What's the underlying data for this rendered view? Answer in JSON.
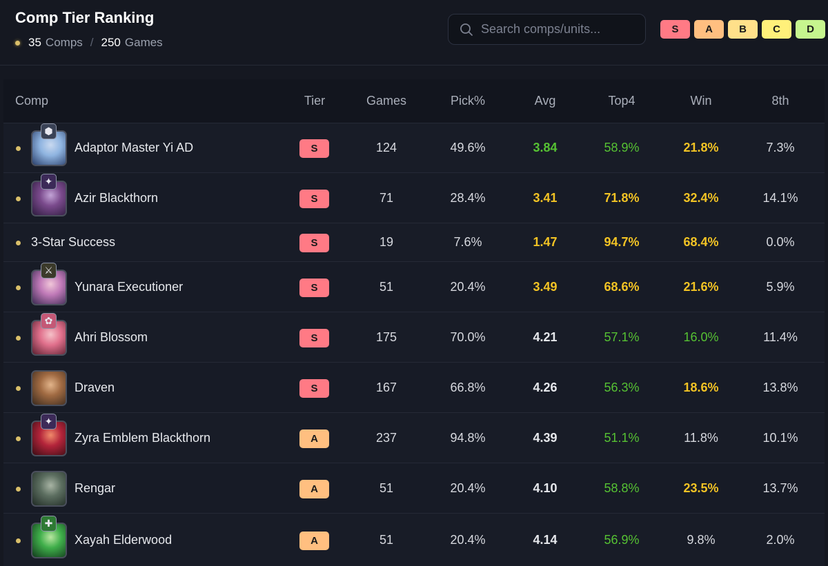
{
  "header": {
    "title": "Comp Tier Ranking",
    "comps_count": "35",
    "comps_label": "Comps",
    "separator": "/",
    "games_count": "250",
    "games_label": "Games"
  },
  "search": {
    "placeholder": "Search comps/units...",
    "value": ""
  },
  "tier_filter": [
    {
      "label": "S",
      "color": "#ff7a85"
    },
    {
      "label": "A",
      "color": "#ffbf80"
    },
    {
      "label": "B",
      "color": "#ffe08a"
    },
    {
      "label": "C",
      "color": "#fff07a"
    },
    {
      "label": "D",
      "color": "#c6f58e"
    }
  ],
  "columns": [
    "Comp",
    "Tier",
    "Games",
    "Pick%",
    "Avg",
    "Top4",
    "Win",
    "8th"
  ],
  "colors": {
    "good_stat": "#56c233",
    "great_stat": "#f2c324",
    "tier_S": "#ff7a85",
    "tier_A": "#ffbf80",
    "dot": "#d9bf6a"
  },
  "rows": [
    {
      "name": "Adaptor Master Yi AD",
      "icon": "master-yi-portrait",
      "emblem": "adaptor-emblem-icon",
      "tier": "S",
      "games": "124",
      "pick": "49.6%",
      "avg": "3.84",
      "top4": "58.9%",
      "win": "21.8%",
      "eighth": "7.3%"
    },
    {
      "name": "Azir Blackthorn",
      "icon": "azir-portrait",
      "emblem": "blackthorn-emblem-icon",
      "tier": "S",
      "games": "71",
      "pick": "28.4%",
      "avg": "3.41",
      "top4": "71.8%",
      "win": "32.4%",
      "eighth": "14.1%"
    },
    {
      "name": "3-Star Success",
      "icon": "",
      "emblem": "",
      "tier": "S",
      "games": "19",
      "pick": "7.6%",
      "avg": "1.47",
      "top4": "94.7%",
      "win": "68.4%",
      "eighth": "0.0%"
    },
    {
      "name": "Yunara Executioner",
      "icon": "yunara-portrait",
      "emblem": "executioner-emblem-icon",
      "tier": "S",
      "games": "51",
      "pick": "20.4%",
      "avg": "3.49",
      "top4": "68.6%",
      "win": "21.6%",
      "eighth": "5.9%"
    },
    {
      "name": "Ahri Blossom",
      "icon": "ahri-portrait",
      "emblem": "blossom-emblem-icon",
      "tier": "S",
      "games": "175",
      "pick": "70.0%",
      "avg": "4.21",
      "top4": "57.1%",
      "win": "16.0%",
      "eighth": "11.4%"
    },
    {
      "name": "Draven",
      "icon": "draven-portrait",
      "emblem": "",
      "tier": "S",
      "games": "167",
      "pick": "66.8%",
      "avg": "4.26",
      "top4": "56.3%",
      "win": "18.6%",
      "eighth": "13.8%"
    },
    {
      "name": "Zyra Emblem Blackthorn",
      "icon": "zyra-portrait",
      "emblem": "blackthorn-emblem-icon",
      "tier": "A",
      "games": "237",
      "pick": "94.8%",
      "avg": "4.39",
      "top4": "51.1%",
      "win": "11.8%",
      "eighth": "10.1%"
    },
    {
      "name": "Rengar",
      "icon": "rengar-portrait",
      "emblem": "",
      "tier": "A",
      "games": "51",
      "pick": "20.4%",
      "avg": "4.10",
      "top4": "58.8%",
      "win": "23.5%",
      "eighth": "13.7%"
    },
    {
      "name": "Xayah Elderwood",
      "icon": "xayah-portrait",
      "emblem": "elderwood-emblem-icon",
      "tier": "A",
      "games": "51",
      "pick": "20.4%",
      "avg": "4.14",
      "top4": "56.9%",
      "win": "9.8%",
      "eighth": "2.0%"
    }
  ]
}
